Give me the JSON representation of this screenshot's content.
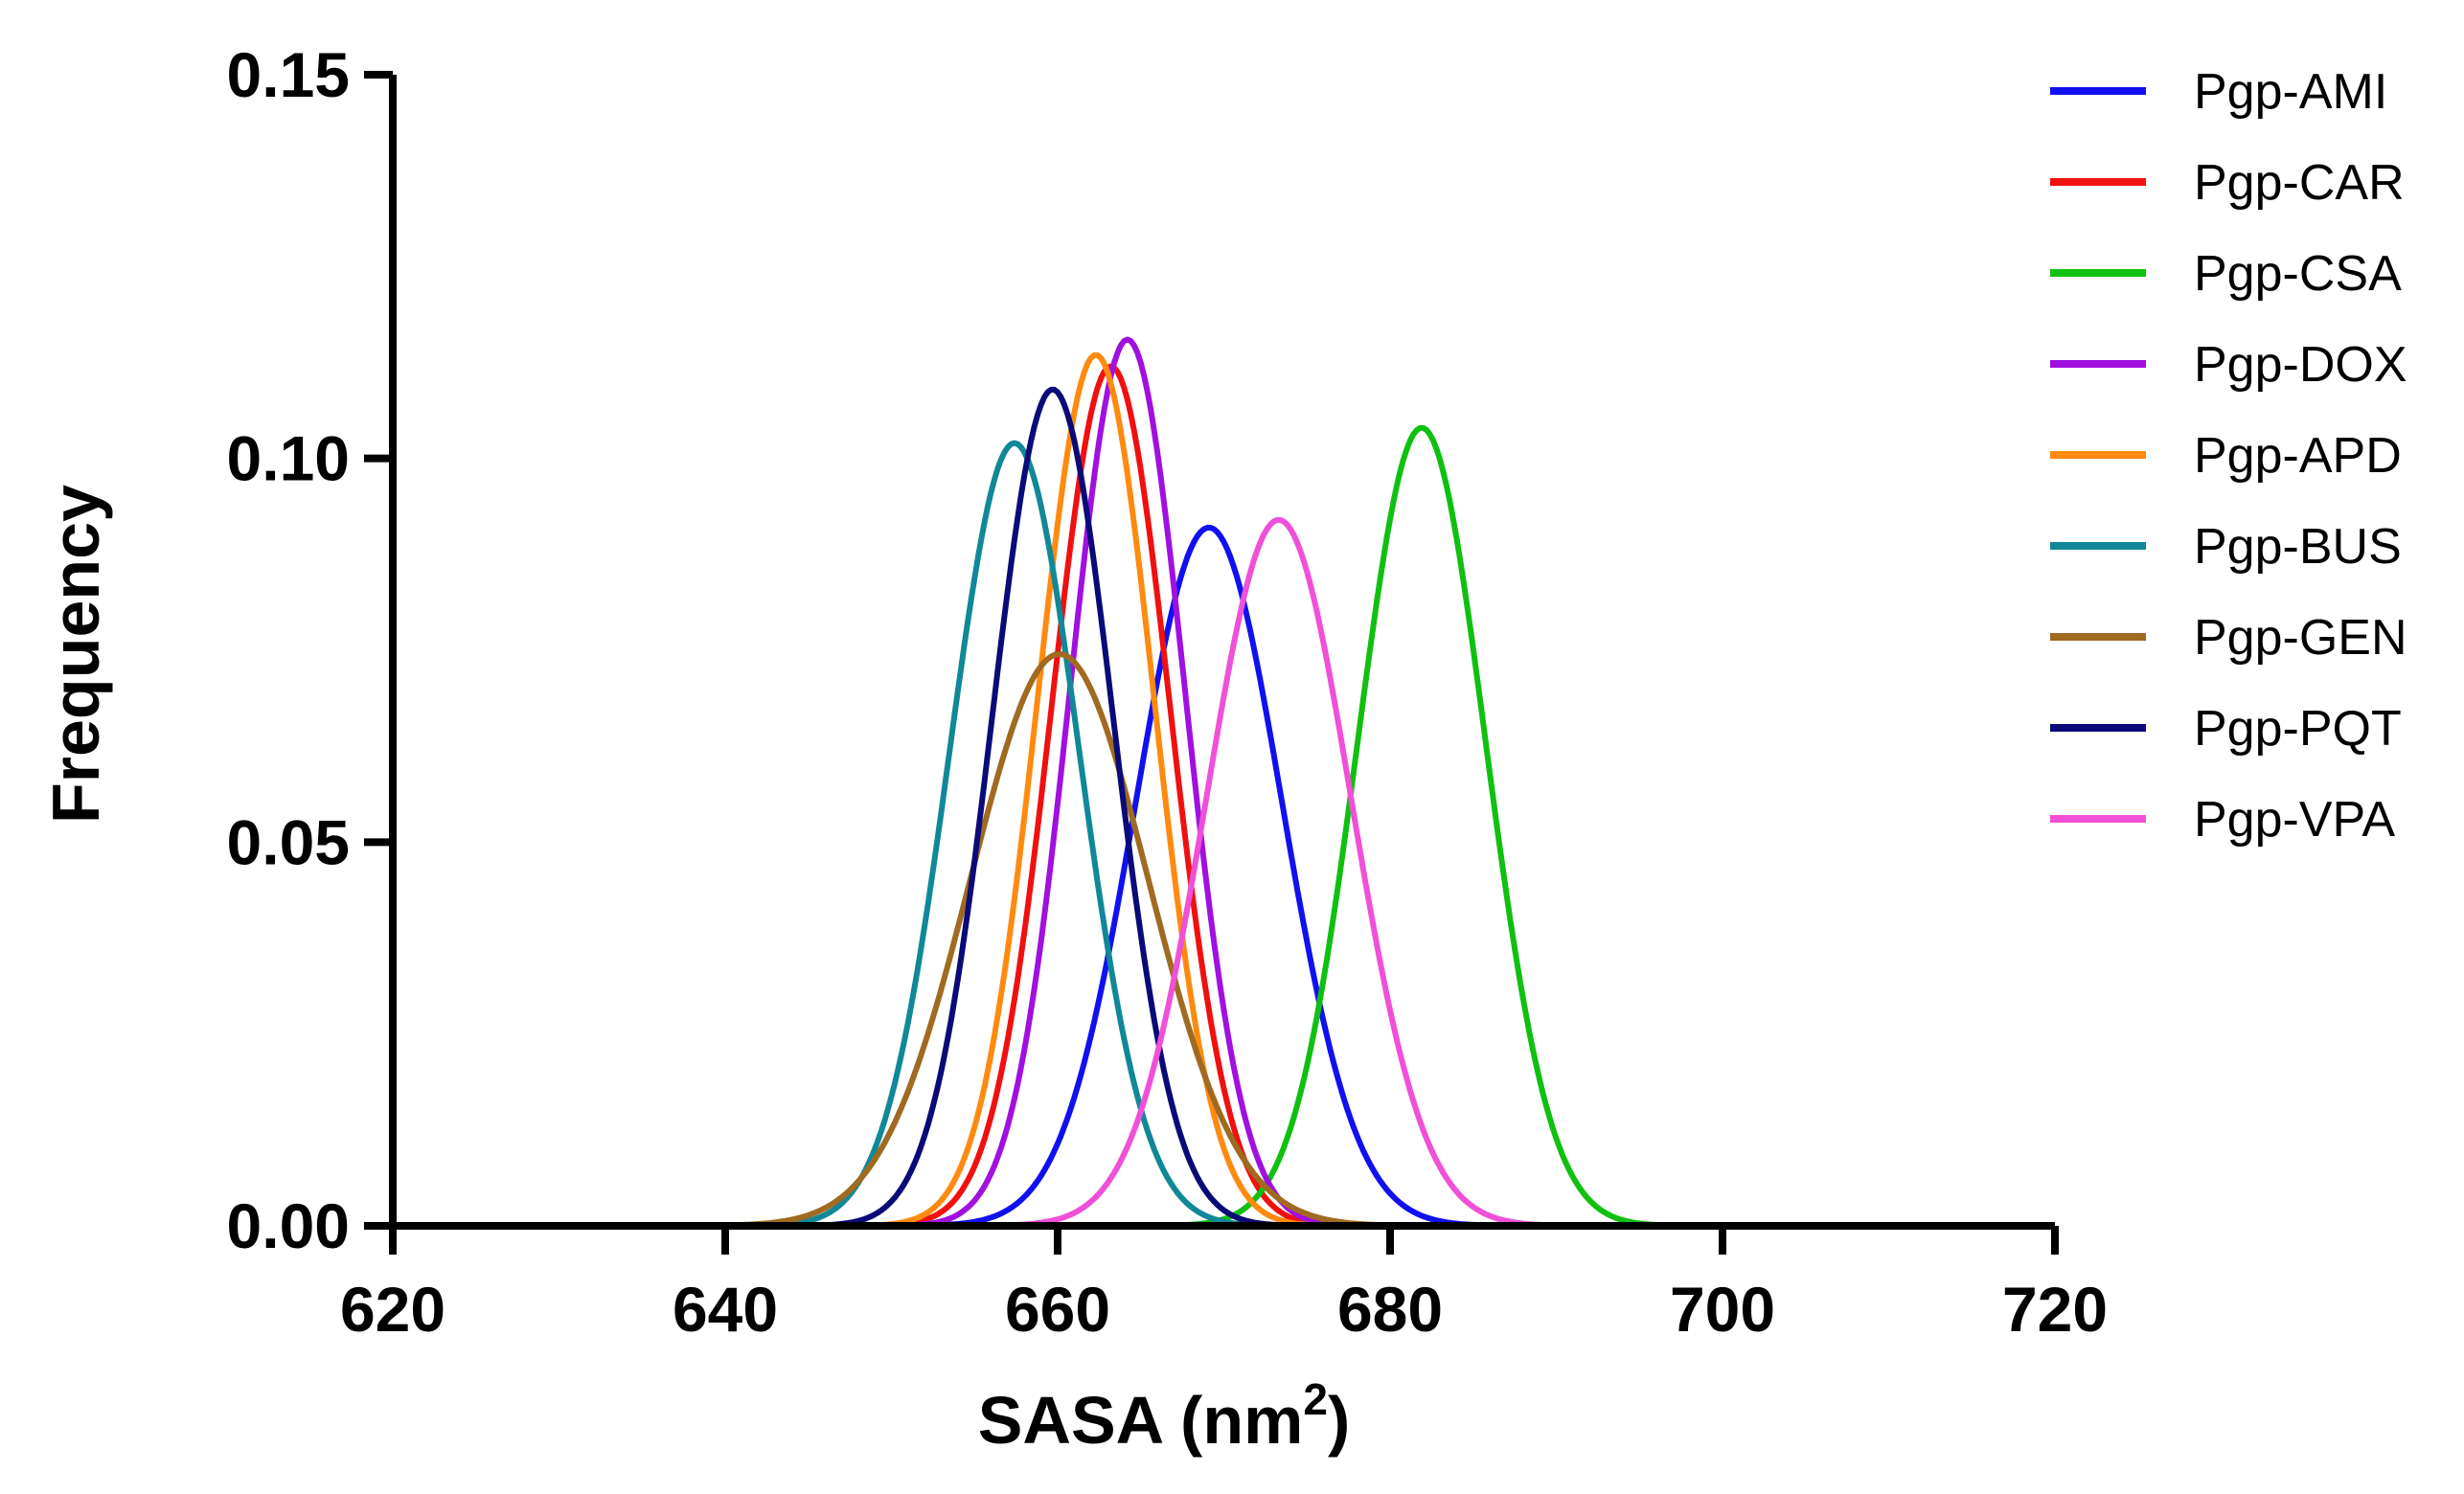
{
  "chart_data": {
    "type": "line",
    "title": "",
    "xlabel_main": "SASA (nm",
    "xlabel_sup": "2",
    "xlabel_close": ")",
    "ylabel": "Frequency",
    "xlim": [
      620,
      720
    ],
    "ylim": [
      0,
      0.15
    ],
    "xticks": [
      620,
      640,
      660,
      680,
      700,
      720
    ],
    "xtick_labels": [
      "620",
      "640",
      "660",
      "680",
      "700",
      "720"
    ],
    "yticks": [
      0,
      0.05,
      0.1,
      0.15
    ],
    "ytick_labels": [
      "0.00",
      "0.05",
      "0.10",
      "0.15"
    ],
    "legend_position": "top-right",
    "x_range": [
      632,
      712
    ],
    "series": [
      {
        "name": "Pgp-AMI",
        "color": "#1010f0",
        "peak_x": 669.1,
        "peak_y": 0.091,
        "sigma": 4.4
      },
      {
        "name": "Pgp-CAR",
        "color": "#f01010",
        "peak_x": 663.2,
        "peak_y": 0.112,
        "sigma": 3.55
      },
      {
        "name": "Pgp-CSA",
        "color": "#10c010",
        "peak_x": 681.9,
        "peak_y": 0.104,
        "sigma": 3.85
      },
      {
        "name": "Pgp-DOX",
        "color": "#a010e0",
        "peak_x": 664.2,
        "peak_y": 0.1155,
        "sigma": 3.45
      },
      {
        "name": "Pgp-APD",
        "color": "#ff8a10",
        "peak_x": 662.3,
        "peak_y": 0.1135,
        "sigma": 3.5
      },
      {
        "name": "Pgp-BUS",
        "color": "#108898",
        "peak_x": 657.4,
        "peak_y": 0.102,
        "sigma": 3.9
      },
      {
        "name": "Pgp-GEN",
        "color": "#a06a20",
        "peak_x": 660.1,
        "peak_y": 0.0745,
        "sigma": 5.35
      },
      {
        "name": "Pgp-PQT",
        "color": "#0a0a78",
        "peak_x": 659.7,
        "peak_y": 0.109,
        "sigma": 3.65
      },
      {
        "name": "Pgp-VPA",
        "color": "#f050d8",
        "peak_x": 673.3,
        "peak_y": 0.092,
        "sigma": 4.35
      }
    ]
  }
}
